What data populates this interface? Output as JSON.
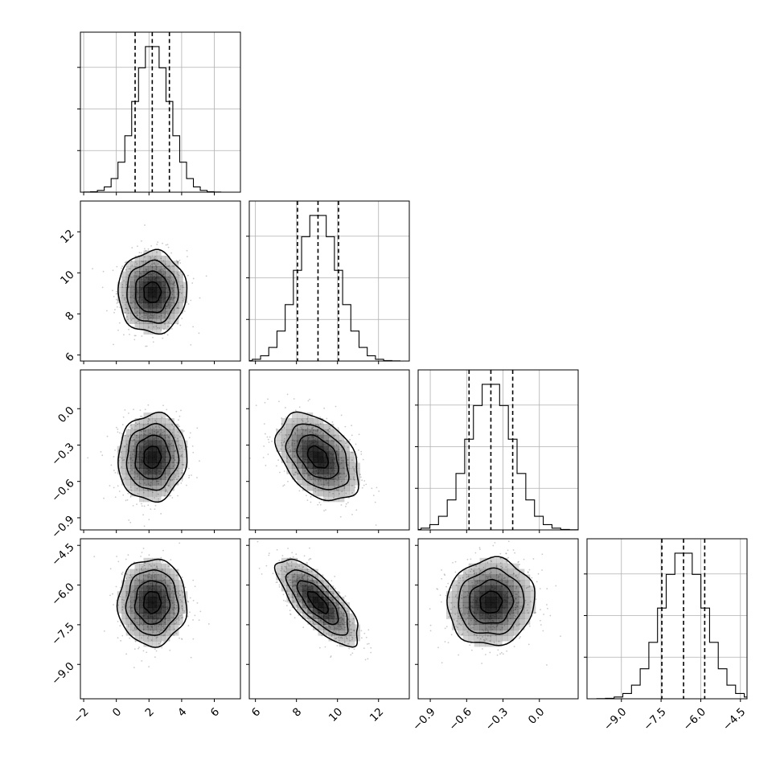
{
  "chart_data": {
    "type": "corner",
    "parameters": [
      {
        "range": [
          -2.2,
          7.6
        ],
        "ticks": [
          -2,
          0,
          2,
          4,
          6
        ],
        "tick_labels": [
          "−2",
          "0",
          "2",
          "4",
          "6"
        ],
        "mean": 2.2,
        "std": 1.05,
        "quantiles": [
          1.15,
          2.2,
          3.25
        ]
      },
      {
        "range": [
          5.7,
          13.5
        ],
        "ticks": [
          6,
          8,
          10,
          12
        ],
        "tick_labels": [
          "6",
          "8",
          "10",
          "12"
        ],
        "mean": 9.05,
        "std": 1.0,
        "quantiles": [
          8.05,
          9.05,
          10.05
        ]
      },
      {
        "range": [
          -1.0,
          0.32
        ],
        "ticks": [
          -0.9,
          -0.6,
          -0.3,
          0.0
        ],
        "tick_labels": [
          "−0.9",
          "−0.6",
          "−0.3",
          "0.0"
        ],
        "mean": -0.4,
        "std": 0.18,
        "quantiles": [
          -0.58,
          -0.4,
          -0.22
        ]
      },
      {
        "range": [
          -10.3,
          -4.25
        ],
        "ticks": [
          -9.0,
          -7.5,
          -6.0,
          -4.5
        ],
        "tick_labels": [
          "−9.0",
          "−7.5",
          "−6.0",
          "−4.5"
        ],
        "mean": -6.65,
        "std": 0.82,
        "quantiles": [
          -7.47,
          -6.65,
          -5.85
        ]
      }
    ],
    "correlations": [
      [
        1.0,
        0.0,
        0.05,
        0.0
      ],
      [
        0.0,
        1.0,
        -0.4,
        -0.75
      ],
      [
        0.05,
        -0.4,
        1.0,
        0.05
      ],
      [
        0.0,
        -0.75,
        0.05,
        1.0
      ]
    ],
    "histogram_bins": 20,
    "contour_levels_sigma": [
      0.5,
      1.0,
      1.5,
      2.0
    ],
    "quantile_levels": [
      0.16,
      0.5,
      0.84
    ],
    "grid": true,
    "scatter_points_per_panel": 600,
    "colors": {
      "points": "#9e9e9e",
      "density": "#000000",
      "lines": "#000000",
      "grid": "#b0b0b0"
    }
  }
}
